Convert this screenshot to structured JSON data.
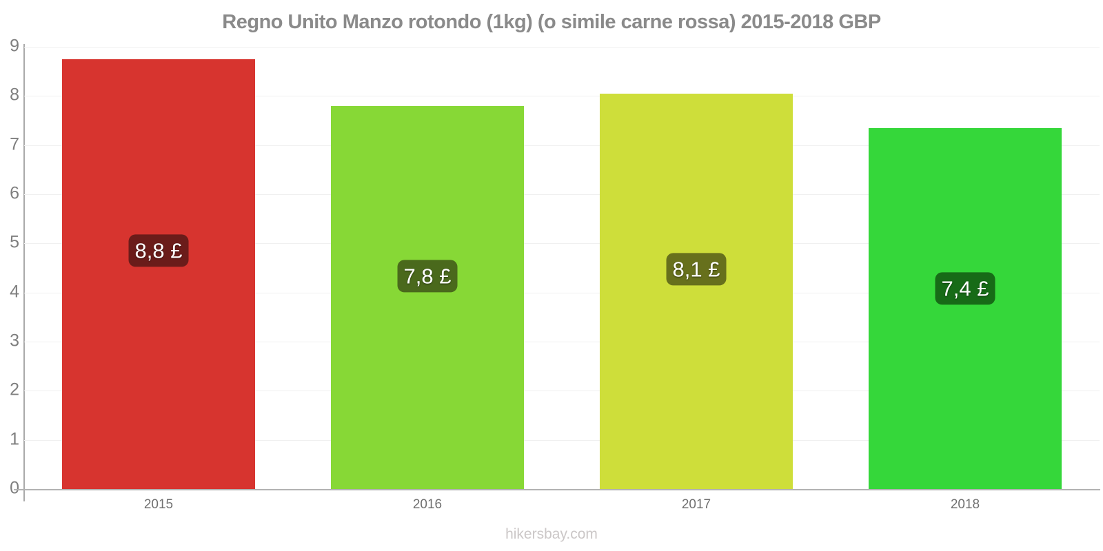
{
  "footer": {
    "text": "hikersbay.com"
  },
  "chart_data": {
    "type": "bar",
    "title": "Regno Unito Manzo rotondo (1kg) (o simile carne rossa) 2015-2018 GBP",
    "categories": [
      "2015",
      "2016",
      "2017",
      "2018"
    ],
    "values": [
      8.75,
      7.8,
      8.05,
      7.35
    ],
    "value_labels": [
      "8,8 £",
      "7,8 £",
      "8,1 £",
      "7,4 £"
    ],
    "currency": "GBP",
    "bar_colors": [
      "#d7342f",
      "#87d836",
      "#cede3a",
      "#35d73a"
    ],
    "label_bg_colors": [
      "#6b1c1a",
      "#4a691c",
      "#67701c",
      "#176b17"
    ],
    "label_text_color": "#ffffff",
    "xlabel": "",
    "ylabel": "",
    "ylim": [
      0,
      9
    ],
    "yticks": [
      0,
      1,
      2,
      3,
      4,
      5,
      6,
      7,
      8,
      9
    ],
    "grid": true,
    "legend": "none"
  }
}
